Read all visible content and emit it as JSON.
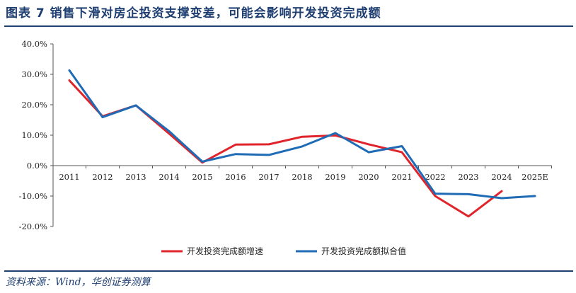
{
  "header": {
    "figure_title": "图表 7   销售下滑对房企投资支撑变差，可能会影响开发投资完成额"
  },
  "footer": {
    "source": "资料来源：Wind，华创证券测算"
  },
  "chart_data": {
    "type": "line",
    "categories": [
      "2011",
      "2012",
      "2013",
      "2014",
      "2015",
      "2016",
      "2017",
      "2018",
      "2019",
      "2020",
      "2021",
      "2022",
      "2023",
      "2024",
      "2025E"
    ],
    "ylim": [
      -0.2,
      0.4
    ],
    "yticks": [
      0.4,
      0.3,
      0.2,
      0.1,
      0.0,
      -0.1,
      -0.2
    ],
    "ytick_labels": [
      "40.0%",
      "30.0%",
      "20.0%",
      "10.0%",
      "0.0%",
      "-10.0%",
      "-20.0%"
    ],
    "grid": false,
    "legend_position": "bottom",
    "series": [
      {
        "name": "开发投资完成额增速",
        "color": "#e0242c",
        "values": [
          0.28,
          0.162,
          0.198,
          0.105,
          0.01,
          0.069,
          0.07,
          0.095,
          0.099,
          0.07,
          0.044,
          -0.1,
          -0.167,
          -0.084,
          null
        ]
      },
      {
        "name": "开发投资完成额拟合值",
        "color": "#1f6bb5",
        "values": [
          0.313,
          0.159,
          0.198,
          0.113,
          0.013,
          0.038,
          0.035,
          0.063,
          0.107,
          0.044,
          0.064,
          -0.092,
          -0.094,
          -0.107,
          -0.1
        ]
      }
    ]
  }
}
